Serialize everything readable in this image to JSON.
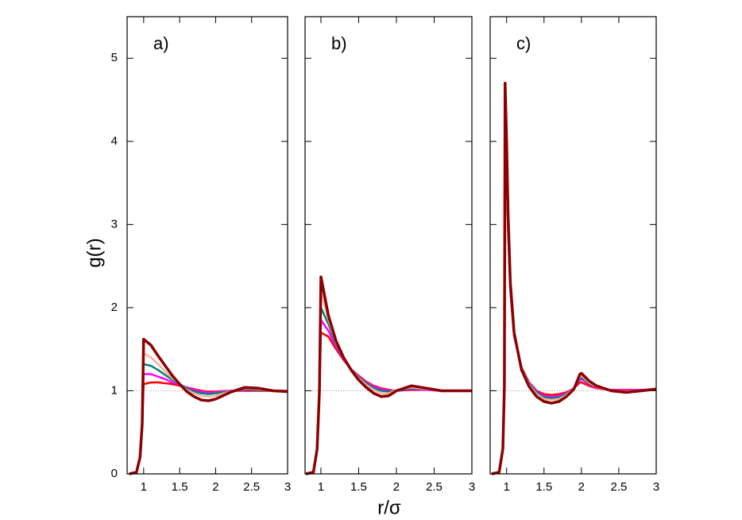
{
  "chart_data": [
    {
      "type": "line",
      "title": "a)",
      "ylabel": "g(r)",
      "x": [
        0.8,
        0.9,
        0.95,
        0.98,
        1.0,
        1.1,
        1.2,
        1.3,
        1.4,
        1.5,
        1.6,
        1.7,
        1.8,
        1.9,
        2.0,
        2.2,
        2.4,
        2.6,
        2.8,
        3.0
      ],
      "series": [
        {
          "color": "#ff0000",
          "values": [
            0,
            0.02,
            0.2,
            0.6,
            1.08,
            1.1,
            1.1,
            1.09,
            1.08,
            1.06,
            1.04,
            1.02,
            1.0,
            0.99,
            0.99,
            1.0,
            1.0,
            1.0,
            1.0,
            1.0
          ]
        },
        {
          "color": "#ff00ff",
          "values": [
            0,
            0.02,
            0.2,
            0.6,
            1.2,
            1.2,
            1.17,
            1.14,
            1.1,
            1.07,
            1.04,
            1.01,
            0.99,
            0.98,
            0.98,
            1.0,
            1.01,
            1.01,
            1.0,
            1.0
          ]
        },
        {
          "color": "#008080",
          "values": [
            0,
            0.02,
            0.2,
            0.6,
            1.32,
            1.3,
            1.25,
            1.19,
            1.13,
            1.08,
            1.03,
            0.99,
            0.97,
            0.96,
            0.97,
            0.99,
            1.02,
            1.01,
            1.0,
            1.0
          ]
        },
        {
          "color": "#f4b49a",
          "values": [
            0,
            0.02,
            0.2,
            0.6,
            1.45,
            1.4,
            1.32,
            1.23,
            1.15,
            1.08,
            1.01,
            0.97,
            0.94,
            0.93,
            0.94,
            0.99,
            1.03,
            1.02,
            1.0,
            1.0
          ]
        },
        {
          "color": "#8b0000",
          "values": [
            0,
            0.02,
            0.2,
            0.6,
            1.62,
            1.55,
            1.42,
            1.3,
            1.18,
            1.08,
            0.99,
            0.93,
            0.89,
            0.88,
            0.9,
            0.98,
            1.04,
            1.03,
            1.0,
            0.99
          ]
        }
      ],
      "hline": 1,
      "xlim": [
        0.77,
        3
      ],
      "xticks": [
        1,
        1.5,
        2,
        2.5,
        3
      ],
      "ylim": [
        0,
        5.5
      ],
      "yticks": [
        0,
        1,
        2,
        3,
        4,
        5
      ],
      "ytick_labels": true
    },
    {
      "type": "line",
      "title": "b)",
      "xlabel": "r/σ",
      "x": [
        0.8,
        0.9,
        0.95,
        0.98,
        1.0,
        1.1,
        1.2,
        1.3,
        1.4,
        1.5,
        1.6,
        1.7,
        1.8,
        1.9,
        2.0,
        2.2,
        2.4,
        2.6,
        2.8,
        3.0
      ],
      "series": [
        {
          "color": "#ff0000",
          "values": [
            0,
            0.02,
            0.3,
            1.0,
            1.7,
            1.65,
            1.5,
            1.37,
            1.26,
            1.18,
            1.11,
            1.06,
            1.03,
            1.01,
            1.0,
            1.01,
            1.01,
            1.0,
            1.0,
            1.0
          ]
        },
        {
          "color": "#ff00ff",
          "values": [
            0,
            0.02,
            0.3,
            1.0,
            1.85,
            1.72,
            1.53,
            1.38,
            1.26,
            1.17,
            1.1,
            1.05,
            1.02,
            1.0,
            1.0,
            1.02,
            1.01,
            1.0,
            1.0,
            1.0
          ]
        },
        {
          "color": "#008080",
          "values": [
            0,
            0.02,
            0.3,
            1.0,
            2.0,
            1.8,
            1.56,
            1.39,
            1.26,
            1.16,
            1.09,
            1.03,
            1.0,
            0.99,
            1.0,
            1.03,
            1.02,
            1.0,
            1.0,
            1.0
          ]
        },
        {
          "color": "#f4b49a",
          "values": [
            0,
            0.02,
            0.3,
            1.0,
            2.2,
            1.85,
            1.58,
            1.4,
            1.26,
            1.15,
            1.07,
            1.01,
            0.97,
            0.97,
            1.01,
            1.04,
            1.02,
            1.0,
            1.0,
            1.0
          ]
        },
        {
          "color": "#8b0000",
          "values": [
            0,
            0.02,
            0.3,
            1.0,
            2.37,
            1.9,
            1.6,
            1.4,
            1.25,
            1.13,
            1.04,
            0.97,
            0.93,
            0.94,
            1.0,
            1.06,
            1.03,
            1.0,
            1.0,
            1.0
          ]
        }
      ],
      "hline": 1,
      "xlim": [
        0.79,
        3
      ],
      "xticks": [
        1,
        1.5,
        2,
        2.5,
        3
      ],
      "ylim": [
        0,
        5.5
      ],
      "yticks": [
        0,
        1,
        2,
        3,
        4,
        5
      ],
      "ytick_labels": false
    },
    {
      "type": "line",
      "title": "c)",
      "x": [
        0.8,
        0.9,
        0.95,
        0.97,
        0.98,
        1.0,
        1.02,
        1.05,
        1.1,
        1.2,
        1.3,
        1.4,
        1.5,
        1.6,
        1.7,
        1.8,
        1.9,
        1.98,
        2.0,
        2.1,
        2.2,
        2.4,
        2.6,
        2.8,
        3.0
      ],
      "series": [
        {
          "color": "#ff0000",
          "values": [
            0,
            0.02,
            0.3,
            1.0,
            4.1,
            3.7,
            2.9,
            2.2,
            1.66,
            1.28,
            1.1,
            1.0,
            0.96,
            0.95,
            0.96,
            0.98,
            1.03,
            1.1,
            1.1,
            1.06,
            1.03,
            1.01,
            1.01,
            1.01,
            1.02
          ]
        },
        {
          "color": "#ff00ff",
          "values": [
            0,
            0.02,
            0.3,
            1.0,
            4.2,
            3.8,
            2.95,
            2.22,
            1.67,
            1.27,
            1.09,
            0.99,
            0.94,
            0.93,
            0.94,
            0.97,
            1.03,
            1.13,
            1.14,
            1.08,
            1.04,
            1.01,
            1.0,
            1.01,
            1.02
          ]
        },
        {
          "color": "#008080",
          "values": [
            0,
            0.02,
            0.3,
            1.0,
            4.3,
            3.85,
            3.0,
            2.24,
            1.68,
            1.27,
            1.08,
            0.98,
            0.92,
            0.91,
            0.92,
            0.96,
            1.03,
            1.15,
            1.16,
            1.09,
            1.05,
            1.0,
            0.99,
            1.0,
            1.02
          ]
        },
        {
          "color": "#f4b49a",
          "values": [
            0,
            0.02,
            0.3,
            1.05,
            4.5,
            3.9,
            3.0,
            2.25,
            1.68,
            1.26,
            1.07,
            0.96,
            0.9,
            0.89,
            0.9,
            0.95,
            1.03,
            1.17,
            1.18,
            1.1,
            1.05,
            1.0,
            0.99,
            1.0,
            1.02
          ]
        },
        {
          "color": "#8b0000",
          "values": [
            0,
            0.02,
            0.3,
            1.05,
            4.7,
            4.0,
            3.1,
            2.3,
            1.7,
            1.25,
            1.05,
            0.93,
            0.87,
            0.85,
            0.87,
            0.93,
            1.02,
            1.2,
            1.21,
            1.12,
            1.06,
            1.0,
            0.98,
            1.0,
            1.02
          ]
        }
      ],
      "hline": 1,
      "xlim": [
        0.78,
        3
      ],
      "xticks": [
        1,
        1.5,
        2,
        2.5,
        3
      ],
      "ylim": [
        0,
        5.5
      ],
      "yticks": [
        0,
        1,
        2,
        3,
        4,
        5
      ],
      "ytick_labels": false
    }
  ]
}
